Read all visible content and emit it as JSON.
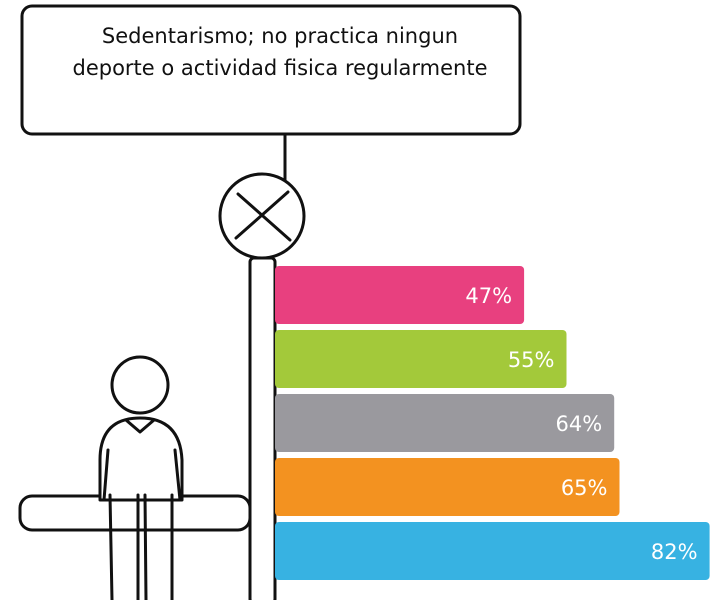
{
  "chart_data": {
    "type": "bar",
    "orientation": "horizontal",
    "title": "Sedentarismo; no practica ningun deporte o actividad fisica regularmente",
    "values": [
      47,
      55,
      64,
      65,
      82
    ],
    "value_labels": [
      "47%",
      "55%",
      "64%",
      "65%",
      "82%"
    ],
    "colors": [
      "#e8407f",
      "#a3c93a",
      "#9a999e",
      "#f39220",
      "#37b2e2"
    ]
  }
}
